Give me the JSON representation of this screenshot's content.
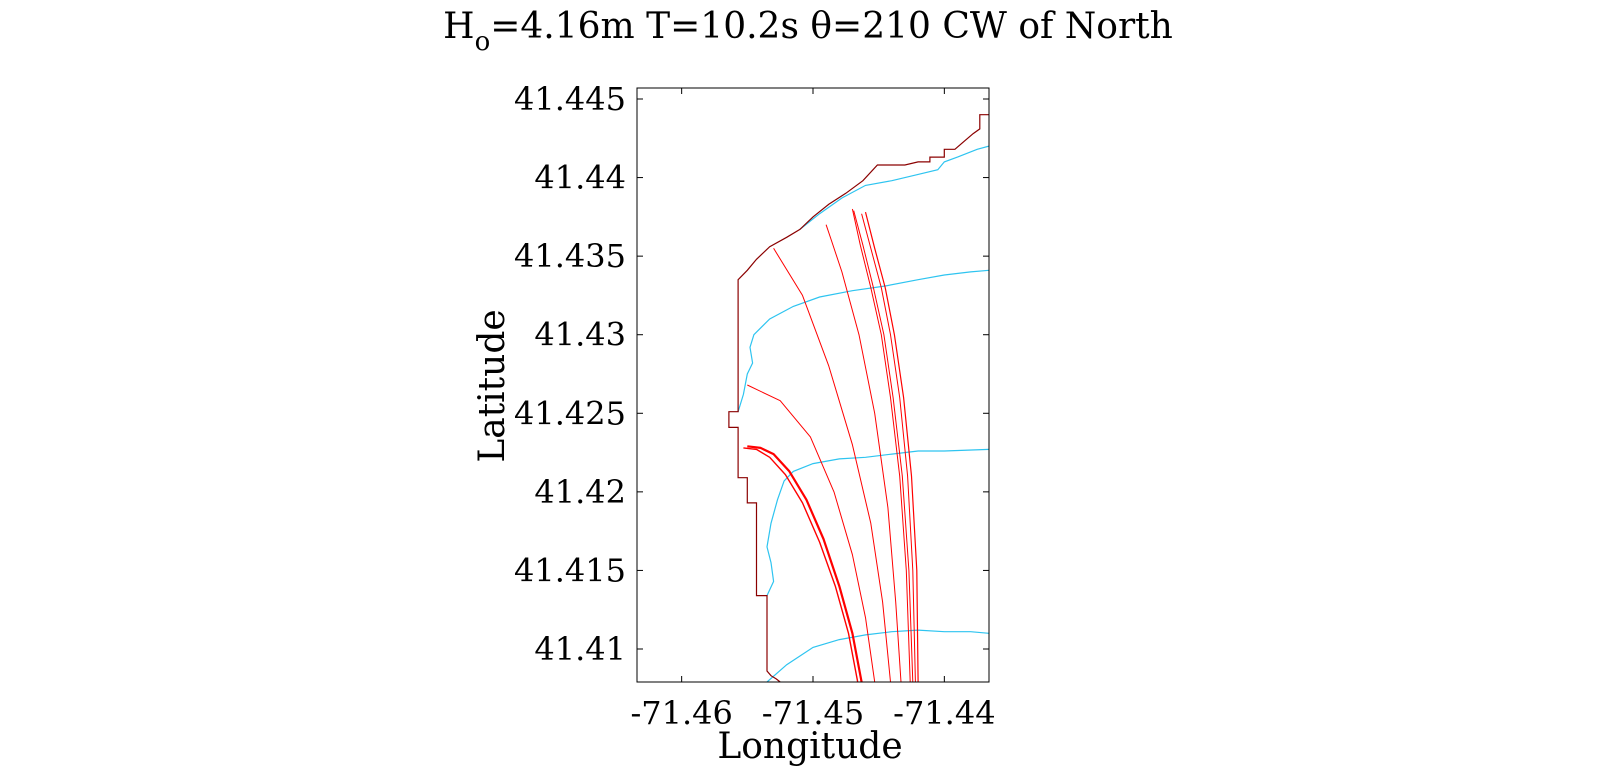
{
  "chart_data": {
    "type": "line",
    "title": {
      "part1": "H",
      "subscript": "o",
      "part2": "=4.16m T=10.2s θ=210 CW of North"
    },
    "xlabel": "Longitude",
    "ylabel": "Latitude",
    "xlim": [
      -71.4634,
      -71.4366
    ],
    "ylim": [
      41.4079,
      41.4457
    ],
    "xticks": [
      {
        "value": -71.46,
        "label": "-71.46"
      },
      {
        "value": -71.45,
        "label": "-71.45"
      },
      {
        "value": -71.44,
        "label": "-71.44"
      }
    ],
    "yticks": [
      {
        "value": 41.41,
        "label": "41.41"
      },
      {
        "value": 41.415,
        "label": "41.415"
      },
      {
        "value": 41.42,
        "label": "41.42"
      },
      {
        "value": 41.425,
        "label": "41.425"
      },
      {
        "value": 41.43,
        "label": "41.43"
      },
      {
        "value": 41.435,
        "label": "41.435"
      },
      {
        "value": 41.44,
        "label": "41.44"
      },
      {
        "value": 41.445,
        "label": "41.445"
      }
    ],
    "grid": false,
    "colors": {
      "coastline": "#8B0000",
      "contours": "#2ec4f0",
      "rays": "#ff0000"
    },
    "coastline": [
      [
        -71.4525,
        41.4079
      ],
      [
        -71.4528,
        41.4081
      ],
      [
        -71.4532,
        41.4083
      ],
      [
        -71.4535,
        41.4086
      ],
      [
        -71.4535,
        41.4134
      ],
      [
        -71.4543,
        41.4134
      ],
      [
        -71.4543,
        41.4193
      ],
      [
        -71.455,
        41.4193
      ],
      [
        -71.455,
        41.4209
      ],
      [
        -71.4557,
        41.4209
      ],
      [
        -71.4557,
        41.4241
      ],
      [
        -71.4564,
        41.4241
      ],
      [
        -71.4564,
        41.4251
      ],
      [
        -71.4557,
        41.4251
      ],
      [
        -71.4557,
        41.4335
      ],
      [
        -71.455,
        41.4341
      ],
      [
        -71.4543,
        41.4348
      ],
      [
        -71.4533,
        41.4356
      ],
      [
        -71.452,
        41.4362
      ],
      [
        -71.451,
        41.4367
      ],
      [
        -71.45,
        41.4375
      ],
      [
        -71.4488,
        41.4383
      ],
      [
        -71.4475,
        41.439
      ],
      [
        -71.4462,
        41.4398
      ],
      [
        -71.4451,
        41.4408
      ],
      [
        -71.443,
        41.4408
      ],
      [
        -71.442,
        41.441
      ],
      [
        -71.4411,
        41.441
      ],
      [
        -71.4411,
        41.4413
      ],
      [
        -71.44,
        41.4413
      ],
      [
        -71.44,
        41.4418
      ],
      [
        -71.4392,
        41.4418
      ],
      [
        -71.4385,
        41.4423
      ],
      [
        -71.4378,
        41.4428
      ],
      [
        -71.4373,
        41.4431
      ],
      [
        -71.4373,
        41.444
      ],
      [
        -71.4366,
        41.444
      ]
    ],
    "contours": [
      [
        [
          -71.4535,
          41.4079
        ],
        [
          -71.452,
          41.409
        ],
        [
          -71.45,
          41.4101
        ],
        [
          -71.448,
          41.4106
        ],
        [
          -71.446,
          41.4109
        ],
        [
          -71.444,
          41.4111
        ],
        [
          -71.442,
          41.4112
        ],
        [
          -71.44,
          41.4111
        ],
        [
          -71.438,
          41.4111
        ],
        [
          -71.4366,
          41.411
        ]
      ],
      [
        [
          -71.4535,
          41.4134
        ],
        [
          -71.453,
          41.4143
        ],
        [
          -71.4532,
          41.4155
        ],
        [
          -71.4535,
          41.4165
        ],
        [
          -71.4532,
          41.418
        ],
        [
          -71.4527,
          41.4195
        ],
        [
          -71.4522,
          41.4207
        ],
        [
          -71.4515,
          41.4213
        ],
        [
          -71.45,
          41.4218
        ],
        [
          -71.448,
          41.4221
        ],
        [
          -71.446,
          41.4222
        ],
        [
          -71.444,
          41.4224
        ],
        [
          -71.442,
          41.4226
        ],
        [
          -71.44,
          41.4226
        ],
        [
          -71.4366,
          41.4227
        ]
      ],
      [
        [
          -71.4557,
          41.4251
        ],
        [
          -71.4553,
          41.4262
        ],
        [
          -71.455,
          41.4275
        ],
        [
          -71.4546,
          41.4282
        ],
        [
          -71.4548,
          41.4292
        ],
        [
          -71.4545,
          41.43
        ],
        [
          -71.4533,
          41.431
        ],
        [
          -71.4515,
          41.4318
        ],
        [
          -71.4495,
          41.4324
        ],
        [
          -71.447,
          41.4328
        ],
        [
          -71.4445,
          41.4331
        ],
        [
          -71.442,
          41.4335
        ],
        [
          -71.44,
          41.4338
        ],
        [
          -71.438,
          41.434
        ],
        [
          -71.4366,
          41.4341
        ]
      ],
      [
        [
          -71.451,
          41.4367
        ],
        [
          -71.4495,
          41.4377
        ],
        [
          -71.4478,
          41.4387
        ],
        [
          -71.446,
          41.4395
        ],
        [
          -71.444,
          41.4398
        ],
        [
          -71.442,
          41.4402
        ],
        [
          -71.4405,
          41.4405
        ],
        [
          -71.44,
          41.441
        ],
        [
          -71.439,
          41.4413
        ],
        [
          -71.4375,
          41.4418
        ],
        [
          -71.4366,
          41.442
        ]
      ]
    ],
    "rays": [
      {
        "width": 1.2,
        "points": [
          [
            -71.442,
            41.4079
          ],
          [
            -71.4421,
            41.415
          ],
          [
            -71.4425,
            41.421
          ],
          [
            -71.4431,
            41.426
          ],
          [
            -71.4438,
            41.43
          ],
          [
            -71.4445,
            41.433
          ],
          [
            -71.4453,
            41.4355
          ],
          [
            -71.446,
            41.4378
          ]
        ]
      },
      {
        "width": 1.0,
        "points": [
          [
            -71.4422,
            41.4079
          ],
          [
            -71.4424,
            41.415
          ],
          [
            -71.4428,
            41.421
          ],
          [
            -71.4434,
            41.426
          ],
          [
            -71.4441,
            41.43
          ],
          [
            -71.4448,
            41.433
          ],
          [
            -71.4456,
            41.4355
          ],
          [
            -71.4463,
            41.4377
          ]
        ]
      },
      {
        "width": 1.0,
        "points": [
          [
            -71.4424,
            41.4079
          ],
          [
            -71.4427,
            41.415
          ],
          [
            -71.4432,
            41.421
          ],
          [
            -71.4439,
            41.426
          ],
          [
            -71.4446,
            41.43
          ],
          [
            -71.4454,
            41.433
          ],
          [
            -71.4462,
            41.4357
          ],
          [
            -71.4469,
            41.4379
          ]
        ]
      },
      {
        "width": 1.0,
        "points": [
          [
            -71.4426,
            41.4079
          ],
          [
            -71.4429,
            41.415
          ],
          [
            -71.4434,
            41.421
          ],
          [
            -71.4441,
            41.426
          ],
          [
            -71.4448,
            41.43
          ],
          [
            -71.4456,
            41.433
          ],
          [
            -71.4464,
            41.4357
          ],
          [
            -71.447,
            41.438
          ]
        ]
      },
      {
        "width": 1.0,
        "points": [
          [
            -71.4433,
            41.4079
          ],
          [
            -71.4437,
            41.413
          ],
          [
            -71.4443,
            41.419
          ],
          [
            -71.4453,
            41.425
          ],
          [
            -71.4465,
            41.43
          ],
          [
            -71.4478,
            41.434
          ],
          [
            -71.4486,
            41.436
          ],
          [
            -71.449,
            41.437
          ]
        ]
      },
      {
        "width": 1.0,
        "points": [
          [
            -71.4441,
            41.4079
          ],
          [
            -71.4447,
            41.413
          ],
          [
            -71.4456,
            41.418
          ],
          [
            -71.447,
            41.423
          ],
          [
            -71.4488,
            41.428
          ],
          [
            -71.4508,
            41.4325
          ],
          [
            -71.453,
            41.4355
          ]
        ]
      },
      {
        "width": 1.0,
        "points": [
          [
            -71.4453,
            41.4079
          ],
          [
            -71.446,
            41.412
          ],
          [
            -71.447,
            41.416
          ],
          [
            -71.4484,
            41.42
          ],
          [
            -71.4502,
            41.4235
          ],
          [
            -71.4525,
            41.4258
          ],
          [
            -71.455,
            41.4268
          ]
        ]
      },
      {
        "width": 2.2,
        "points": [
          [
            -71.4463,
            41.4079
          ],
          [
            -71.447,
            41.411
          ],
          [
            -71.448,
            41.414
          ],
          [
            -71.4492,
            41.417
          ],
          [
            -71.4505,
            41.4195
          ],
          [
            -71.4518,
            41.4213
          ],
          [
            -71.453,
            41.4224
          ],
          [
            -71.454,
            41.4228
          ],
          [
            -71.455,
            41.4229
          ]
        ]
      },
      {
        "width": 1.4,
        "points": [
          [
            -71.4466,
            41.4079
          ],
          [
            -71.4473,
            41.411
          ],
          [
            -71.4483,
            41.414
          ],
          [
            -71.4495,
            41.4168
          ],
          [
            -71.4508,
            41.4193
          ],
          [
            -71.4521,
            41.4211
          ],
          [
            -71.4533,
            41.4222
          ],
          [
            -71.4543,
            41.4227
          ],
          [
            -71.4553,
            41.4228
          ]
        ]
      }
    ]
  }
}
